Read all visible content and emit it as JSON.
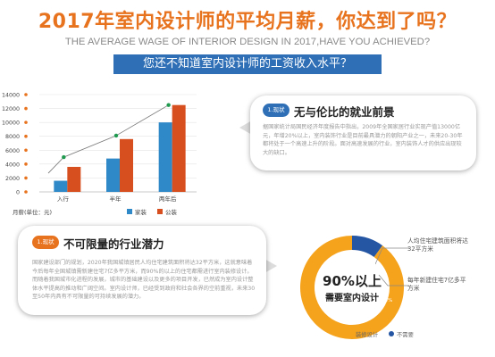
{
  "header": {
    "title": "2017年室内设计师的平均月薪，你达到了吗？",
    "subtitle": "THE AVERAGE WAGE OF INTERIOR DESIGN IN 2017,HAVE YOU ACHIEVED?",
    "banner": "您还不知道室内设计师的工资收入水平？"
  },
  "chart_data": {
    "type": "bar",
    "categories": [
      "入行",
      "半年",
      "两年后"
    ],
    "series": [
      {
        "name": "家装",
        "values": [
          1600,
          4800,
          10000
        ],
        "color": "#2f88c8"
      },
      {
        "name": "公装",
        "values": [
          3600,
          7600,
          12500
        ],
        "color": "#d84f1f"
      }
    ],
    "trend_line": [
      5000,
      8100,
      12500
    ],
    "ylim": [
      0,
      14000
    ],
    "yticks": [
      0,
      2000,
      4000,
      6000,
      8000,
      10000,
      12000,
      14000
    ],
    "ylabel": "月薪(单位：元)",
    "legend_position": "bottom",
    "grid": true
  },
  "section1": {
    "badge": "1.现状",
    "heading": "无与伦比的就业前景",
    "text": "据国家统计局国民经济年度报告中指出，2009年全国家居行业实现产值13000亿元，年增20%以上，室内装饰行业是目前最具潜力的朝阳产业之一，未来20-30年都将处于一个高速上升的阶段。面对高速发展的行业，室内装饰人才的供应出现较大的缺口。"
  },
  "section2": {
    "badge": "1.现状",
    "heading": "不可限量的行业潜力",
    "text": "国家建设部门的规划，2020年我国城镇居民人均住宅建筑面积将达32平方米，这就意味着今后每年全国城镇需新建住宅7亿多平方米，而90%的以上的住宅都需进行室内装修设计。而随着我国城市化进程的发展，城市的基础建设以及更多的项目开发，已然成为室内设计整体水平提高的推动和广阔空间。室内设计师，已经受到政府和社会各界的空前重视，未来30至50年内具有不可限量的可持续发展的潜力。"
  },
  "donut": {
    "big_label": "90%以上",
    "small_label": "需要室内设计",
    "percent_label": "10%",
    "major_value": 90,
    "minor_value": 10,
    "colors": {
      "major": "#f5a21c",
      "minor": "#2456a4"
    },
    "note1": "人均住宅建筑面积将达32平方米",
    "note2": "每年新建住宅7亿多平方米",
    "legend": [
      "装修设计",
      "不需要"
    ]
  }
}
